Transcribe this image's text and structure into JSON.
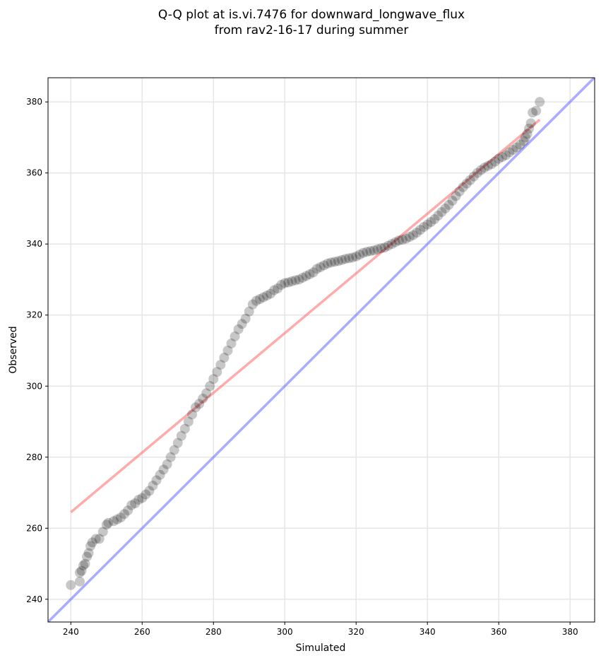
{
  "chart_data": {
    "type": "scatter",
    "title": [
      "Q-Q plot at is.vi.7476 for downward_longwave_flux",
      "from rav2-16-17 during summer"
    ],
    "xlabel": "Simulated",
    "ylabel": "Observed",
    "xlim": [
      233.6,
      386.9
    ],
    "ylim": [
      233.6,
      386.8
    ],
    "xticks": [
      240,
      260,
      280,
      300,
      320,
      340,
      360,
      380
    ],
    "yticks": [
      240,
      260,
      280,
      300,
      320,
      340,
      360,
      380
    ],
    "grid": true,
    "colors": {
      "points": "#000000",
      "fit_line": "#ff6666",
      "identity_line": "#6666ff"
    },
    "identity_line": {
      "label": "1:1",
      "points": [
        [
          233.6,
          233.6
        ],
        [
          386.9,
          386.9
        ]
      ]
    },
    "fit_line": {
      "points": [
        [
          240,
          264.5
        ],
        [
          371.5,
          375
        ]
      ]
    },
    "points": [
      [
        240,
        244
      ],
      [
        242.5,
        245
      ],
      [
        242.5,
        247.5
      ],
      [
        243,
        248
      ],
      [
        243.5,
        249.5
      ],
      [
        244,
        250
      ],
      [
        244.5,
        252
      ],
      [
        245,
        253
      ],
      [
        245.5,
        255
      ],
      [
        246,
        256
      ],
      [
        247,
        257
      ],
      [
        248,
        257
      ],
      [
        249,
        259
      ],
      [
        250,
        261
      ],
      [
        250.5,
        261.5
      ],
      [
        252,
        262
      ],
      [
        253,
        262.5
      ],
      [
        254,
        263
      ],
      [
        255,
        264
      ],
      [
        256,
        265
      ],
      [
        257,
        266.5
      ],
      [
        258,
        267
      ],
      [
        259,
        268
      ],
      [
        260,
        268.5
      ],
      [
        261,
        269.5
      ],
      [
        262,
        270.5
      ],
      [
        263,
        272
      ],
      [
        264,
        273.5
      ],
      [
        265,
        275
      ],
      [
        266,
        276.5
      ],
      [
        267,
        278
      ],
      [
        268,
        280
      ],
      [
        269,
        282
      ],
      [
        270,
        284
      ],
      [
        271,
        286
      ],
      [
        272,
        288
      ],
      [
        273,
        290
      ],
      [
        274,
        292
      ],
      [
        275,
        294
      ],
      [
        276,
        295
      ],
      [
        277,
        296.5
      ],
      [
        278,
        298
      ],
      [
        279,
        300
      ],
      [
        280,
        302
      ],
      [
        281,
        304
      ],
      [
        282,
        306
      ],
      [
        283,
        308
      ],
      [
        284,
        310
      ],
      [
        285,
        312
      ],
      [
        286,
        314
      ],
      [
        287,
        316
      ],
      [
        288,
        317.5
      ],
      [
        289,
        319
      ],
      [
        290,
        321
      ],
      [
        291,
        323
      ],
      [
        292,
        324
      ],
      [
        293,
        324.5
      ],
      [
        294,
        325
      ],
      [
        295,
        325.5
      ],
      [
        296,
        326
      ],
      [
        297,
        327
      ],
      [
        298,
        327.5
      ],
      [
        299,
        328.5
      ],
      [
        300,
        329
      ],
      [
        301,
        329.2
      ],
      [
        302,
        329.5
      ],
      [
        303,
        329.8
      ],
      [
        304,
        330
      ],
      [
        305,
        330.5
      ],
      [
        306,
        331
      ],
      [
        307,
        331.5
      ],
      [
        308,
        332
      ],
      [
        309,
        333
      ],
      [
        310,
        333.5
      ],
      [
        311,
        334
      ],
      [
        312,
        334.5
      ],
      [
        313,
        334.8
      ],
      [
        314,
        335
      ],
      [
        315,
        335.2
      ],
      [
        316,
        335.5
      ],
      [
        317,
        335.8
      ],
      [
        318,
        336
      ],
      [
        319,
        336.2
      ],
      [
        320,
        336.5
      ],
      [
        321,
        337
      ],
      [
        322,
        337.5
      ],
      [
        323,
        337.8
      ],
      [
        324,
        338
      ],
      [
        325,
        338.2
      ],
      [
        326,
        338.5
      ],
      [
        327,
        338.8
      ],
      [
        328,
        339
      ],
      [
        329,
        339.5
      ],
      [
        330,
        340
      ],
      [
        331,
        340.5
      ],
      [
        332,
        341
      ],
      [
        333,
        341.2
      ],
      [
        334,
        341.5
      ],
      [
        335,
        342
      ],
      [
        336,
        342.5
      ],
      [
        337,
        343.2
      ],
      [
        338,
        344
      ],
      [
        339,
        344.8
      ],
      [
        340,
        345.5
      ],
      [
        341,
        346.2
      ],
      [
        342,
        347
      ],
      [
        343,
        348
      ],
      [
        344,
        349
      ],
      [
        345,
        350
      ],
      [
        346,
        351
      ],
      [
        347,
        352.2
      ],
      [
        348,
        353.5
      ],
      [
        349,
        354.8
      ],
      [
        350,
        356
      ],
      [
        351,
        357
      ],
      [
        352,
        358
      ],
      [
        353,
        359
      ],
      [
        354,
        360
      ],
      [
        355,
        360.8
      ],
      [
        356,
        361.5
      ],
      [
        357,
        362
      ],
      [
        358,
        362.5
      ],
      [
        359,
        363.2
      ],
      [
        360,
        364
      ],
      [
        361,
        364.5
      ],
      [
        362,
        365
      ],
      [
        363,
        365.8
      ],
      [
        364,
        366.5
      ],
      [
        365,
        367.2
      ],
      [
        366,
        368
      ],
      [
        367,
        369
      ],
      [
        367.5,
        370
      ],
      [
        368,
        371
      ],
      [
        368.5,
        372.5
      ],
      [
        369,
        374
      ],
      [
        369.5,
        377
      ],
      [
        370.5,
        377.5
      ],
      [
        371.5,
        380
      ]
    ]
  }
}
